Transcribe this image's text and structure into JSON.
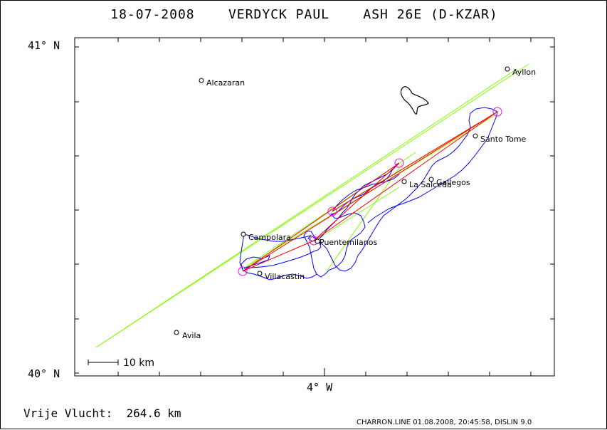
{
  "header": {
    "title": "18-07-2008    VERDYCK PAUL    ASH 26E (D-KZAR)"
  },
  "axes": {
    "lat_top": "41° N",
    "lat_bottom": "40° N",
    "lon_center": "4° W"
  },
  "scale": {
    "label": "10 km"
  },
  "places": [
    {
      "name": "Alcazaran"
    },
    {
      "name": "Ayllon"
    },
    {
      "name": "Santo Tome"
    },
    {
      "name": "Gallegos"
    },
    {
      "name": "La Salceda"
    },
    {
      "name": "Campolara"
    },
    {
      "name": "Puentemilanos"
    },
    {
      "name": "Villacastin"
    },
    {
      "name": "Avila"
    }
  ],
  "footer": {
    "distance": "Vrije Vlucht:  264.6 km",
    "info": "CHARRON.LINE 01.08.2008, 20:45:58, DISLIN 9.0"
  },
  "colors": {
    "track": "#0000ff",
    "legs": "#ff0000",
    "sector": "#80ff00",
    "turnpoint": "#ff00ff",
    "frame": "#000000"
  }
}
